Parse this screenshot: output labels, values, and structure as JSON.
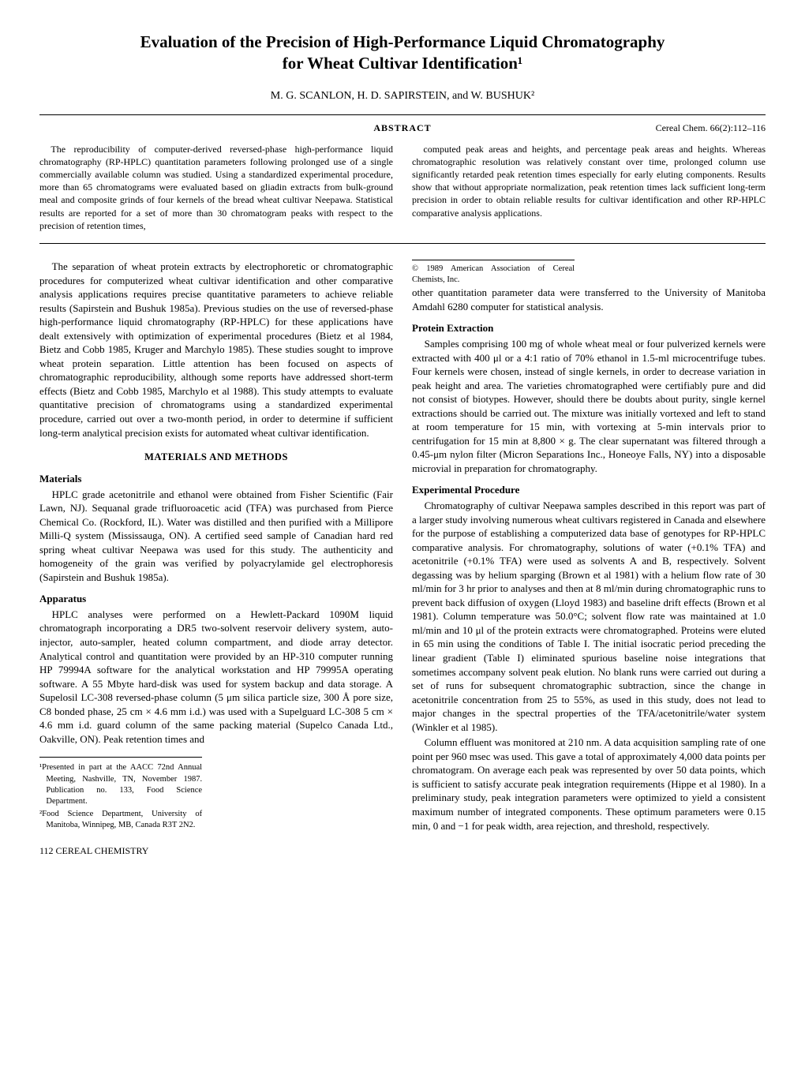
{
  "title_line1": "Evaluation of the Precision of High-Performance Liquid Chromatography",
  "title_line2": "for Wheat Cultivar Identification¹",
  "authors": "M. G. SCANLON, H. D. SAPIRSTEIN, and W. BUSHUK²",
  "abstract_label": "ABSTRACT",
  "citation": "Cereal Chem. 66(2):112–116",
  "abstract_para1": "The reproducibility of computer-derived reversed-phase high-performance liquid chromatography (RP-HPLC) quantitation parameters following prolonged use of a single commercially available column was studied. Using a standardized experimental procedure, more than 65 chromatograms were evaluated based on gliadin extracts from bulk-ground meal and composite grinds of four kernels of the bread wheat cultivar Neepawa. Statistical results are reported for a set of more than 30 chromatogram peaks with respect to the precision of retention times,",
  "abstract_para2": "computed peak areas and heights, and percentage peak areas and heights. Whereas chromatographic resolution was relatively constant over time, prolonged column use significantly retarded peak retention times especially for early eluting components. Results show that without appropriate normalization, peak retention times lack sufficient long-term precision in order to obtain reliable results for cultivar identification and other RP-HPLC comparative analysis applications.",
  "intro_para": "The separation of wheat protein extracts by electrophoretic or chromatographic procedures for computerized wheat cultivar identification and other comparative analysis applications requires precise quantitative parameters to achieve reliable results (Sapirstein and Bushuk 1985a). Previous studies on the use of reversed-phase high-performance liquid chromatography (RP-HPLC) for these applications have dealt extensively with optimization of experimental procedures (Bietz et al 1984, Bietz and Cobb 1985, Kruger and Marchylo 1985). These studies sought to improve wheat protein separation. Little attention has been focused on aspects of chromatographic reproducibility, although some reports have addressed short-term effects (Bietz and Cobb 1985, Marchylo et al 1988). This study attempts to evaluate quantitative precision of chromatograms using a standardized experimental procedure, carried out over a two-month period, in order to determine if sufficient long-term analytical precision exists for automated wheat cultivar identification.",
  "materials_methods_heading": "MATERIALS AND METHODS",
  "materials_heading": "Materials",
  "materials_para": "HPLC grade acetonitrile and ethanol were obtained from Fisher Scientific (Fair Lawn, NJ). Sequanal grade trifluoroacetic acid (TFA) was purchased from Pierce Chemical Co. (Rockford, IL). Water was distilled and then purified with a Millipore Milli-Q system (Mississauga, ON). A certified seed sample of Canadian hard red spring wheat cultivar Neepawa was used for this study. The authenticity and homogeneity of the grain was verified by polyacrylamide gel electrophoresis (Sapirstein and Bushuk 1985a).",
  "apparatus_heading": "Apparatus",
  "apparatus_para": "HPLC analyses were performed on a Hewlett-Packard 1090M liquid chromatograph incorporating a DR5 two-solvent reservoir delivery system, auto-injector, auto-sampler, heated column compartment, and diode array detector. Analytical control and quantitation were provided by an HP-310 computer running HP 79994A software for the analytical workstation and HP 79995A operating software. A 55 Mbyte hard-disk was used for system backup and data storage. A Supelosil LC-308 reversed-phase column (5 μm silica particle size, 300 Å pore size, C8 bonded phase, 25 cm × 4.6 mm i.d.) was used with a Supelguard LC-308 5 cm × 4.6 mm i.d. guard column of the same packing material (Supelco Canada Ltd., Oakville, ON). Peak retention times and",
  "col2_continuation": "other quantitation parameter data were transferred to the University of Manitoba Amdahl 6280 computer for statistical analysis.",
  "protein_heading": "Protein Extraction",
  "protein_para": "Samples comprising 100 mg of whole wheat meal or four pulverized kernels were extracted with 400 μl or a 4:1 ratio of 70% ethanol in 1.5-ml microcentrifuge tubes. Four kernels were chosen, instead of single kernels, in order to decrease variation in peak height and area. The varieties chromatographed were certifiably pure and did not consist of biotypes. However, should there be doubts about purity, single kernel extractions should be carried out. The mixture was initially vortexed and left to stand at room temperature for 15 min, with vortexing at 5-min intervals prior to centrifugation for 15 min at 8,800 × g. The clear supernatant was filtered through a 0.45-μm nylon filter (Micron Separations Inc., Honeoye Falls, NY) into a disposable microvial in preparation for chromatography.",
  "exp_heading": "Experimental Procedure",
  "exp_para1": "Chromatography of cultivar Neepawa samples described in this report was part of a larger study involving numerous wheat cultivars registered in Canada and elsewhere for the purpose of establishing a computerized data base of genotypes for RP-HPLC comparative analysis. For chromatography, solutions of water (+0.1% TFA) and acetonitrile (+0.1% TFA) were used as solvents A and B, respectively. Solvent degassing was by helium sparging (Brown et al 1981) with a helium flow rate of 30 ml/min for 3 hr prior to analyses and then at 8 ml/min during chromatographic runs to prevent back diffusion of oxygen (Lloyd 1983) and baseline drift effects (Brown et al 1981). Column temperature was 50.0°C; solvent flow rate was maintained at 1.0 ml/min and 10 μl of the protein extracts were chromatographed. Proteins were eluted in 65 min using the conditions of Table I. The initial isocratic period preceding the linear gradient (Table I) eliminated spurious baseline noise integrations that sometimes accompany solvent peak elution. No blank runs were carried out during a set of runs for subsequent chromatographic subtraction, since the change in acetonitrile concentration from 25 to 55%, as used in this study, does not lead to major changes in the spectral properties of the TFA/acetonitrile/water system (Winkler et al 1985).",
  "exp_para2": "Column effluent was monitored at 210 nm. A data acquisition sampling rate of one point per 960 msec was used. This gave a total of approximately 4,000 data points per chromatogram. On average each peak was represented by over 50 data points, which is sufficient to satisfy accurate peak integration requirements (Hippe et al 1980). In a preliminary study, peak integration parameters were optimized to yield a consistent maximum number of integrated components. These optimum parameters were 0.15 min, 0 and −1 for peak width, area rejection, and threshold, respectively.",
  "footnote1": "¹Presented in part at the AACC 72nd Annual Meeting, Nashville, TN, November 1987. Publication no. 133, Food Science Department.",
  "footnote2": "²Food Science Department, University of Manitoba, Winnipeg, MB, Canada R3T 2N2.",
  "copyright": "© 1989 American Association of Cereal Chemists, Inc.",
  "page_footer": "112    CEREAL CHEMISTRY"
}
